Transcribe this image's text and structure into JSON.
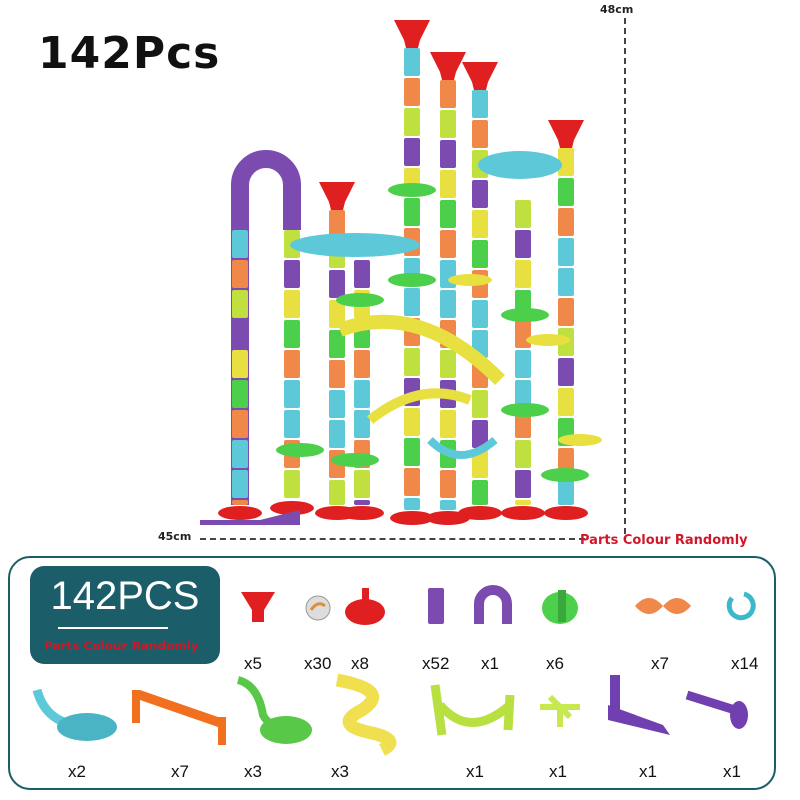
{
  "title": "142Pcs",
  "dimensions": {
    "height": "48cm",
    "width": "45cm"
  },
  "note": "Parts Colour Randomly",
  "panel": {
    "badge_title": "142PCS",
    "badge_note": "Parts Colour Randomly",
    "row1": [
      {
        "part": "funnel",
        "count": "x5"
      },
      {
        "part": "marble",
        "count": "x30"
      },
      {
        "part": "spiral-funnel",
        "count": "x8"
      },
      {
        "part": "straight-tube",
        "count": "x52"
      },
      {
        "part": "u-tube",
        "count": "x1"
      },
      {
        "part": "swirl-connector",
        "count": "x6"
      },
      {
        "part": "twist-track",
        "count": "x7"
      },
      {
        "part": "clip",
        "count": "x14"
      }
    ],
    "row2": [
      {
        "part": "bowl-slide",
        "count": "x2"
      },
      {
        "part": "bridge",
        "count": "x7"
      },
      {
        "part": "curve-chute",
        "count": "x3"
      },
      {
        "part": "wave-slide",
        "count": "x3"
      },
      {
        "part": "cradle",
        "count": "x1"
      },
      {
        "part": "cross-connector",
        "count": "x1"
      },
      {
        "part": "launcher-base",
        "count": "x1"
      },
      {
        "part": "plunger",
        "count": "x1"
      }
    ]
  },
  "colors": {
    "teal": "#1b5e6a",
    "red_text": "#d0182a",
    "cyan": "#5cc8d8",
    "orange": "#f0884a",
    "yellow": "#e8e040",
    "purple": "#7b4bb0",
    "green": "#4cd04c",
    "red": "#e02020",
    "lime": "#c0e040"
  }
}
